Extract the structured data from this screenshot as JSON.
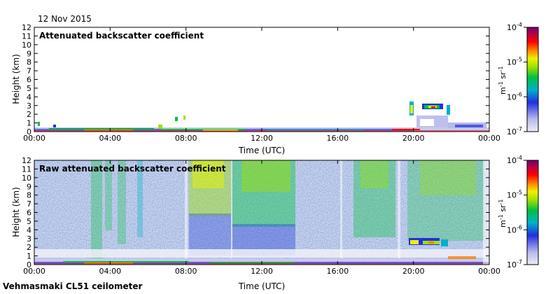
{
  "date_label": "12 Nov 2015",
  "instrument_label": "Vehmasmaki CL51 ceilometer",
  "colorbar": {
    "tick_labels": [
      "10",
      "10",
      "10",
      "10"
    ],
    "tick_exponents": [
      "-4",
      "-5",
      "-6",
      "-7"
    ],
    "unit_m": "m",
    "unit_m_exp": "-1",
    "unit_sr": " sr",
    "unit_sr_exp": "-1",
    "colors_low_to_high": [
      "#e8e8f4",
      "#b8b8ec",
      "#2030e0",
      "#00b0c8",
      "#00c040",
      "#a0e000",
      "#f0f000",
      "#ff8000",
      "#ff0000",
      "#c00040",
      "#700070"
    ]
  },
  "chart_data": [
    {
      "type": "heatmap",
      "title": "Attenuated backscatter coefficient",
      "xlabel": "Time (UTC)",
      "ylabel": "Height (km)",
      "x_tick_labels": [
        "00:00",
        "04:00",
        "08:00",
        "12:00",
        "16:00",
        "20:00",
        "00:00"
      ],
      "y_tick_labels": [
        "0",
        "1",
        "2",
        "3",
        "4",
        "5",
        "6",
        "7",
        "8",
        "9",
        "10",
        "11",
        "12"
      ],
      "xlim": [
        0,
        24
      ],
      "ylim": [
        0,
        12
      ],
      "colorbar_range": [
        1e-07,
        0.0001
      ],
      "log_scale": true
    },
    {
      "type": "heatmap",
      "title": "Raw attenuated backscatter coefficient",
      "xlabel": "Time (UTC)",
      "ylabel": "Height (km)",
      "x_tick_labels": [
        "00:00",
        "04:00",
        "08:00",
        "12:00",
        "16:00",
        "20:00",
        "00:00"
      ],
      "y_tick_labels": [
        "0",
        "1",
        "2",
        "3",
        "4",
        "5",
        "6",
        "7",
        "8",
        "9",
        "10",
        "11",
        "12"
      ],
      "xlim": [
        0,
        24
      ],
      "ylim": [
        0,
        12
      ],
      "colorbar_range": [
        1e-07,
        0.0001
      ],
      "log_scale": true
    }
  ]
}
